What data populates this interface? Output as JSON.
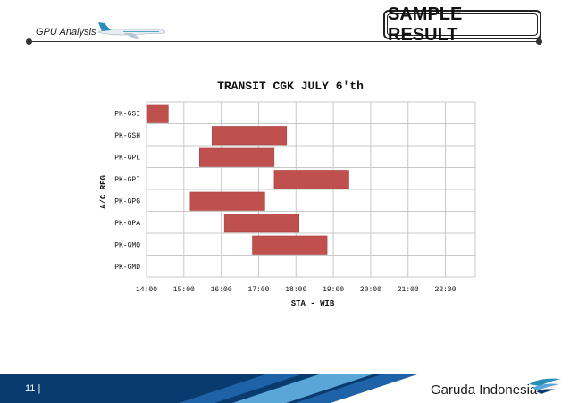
{
  "header": {
    "title": "GPU Analysis",
    "badge": "SAMPLE RESULT"
  },
  "footer": {
    "page": "11 |",
    "brand": "Garuda Indonesia"
  },
  "colors": {
    "bar": "#c0504d",
    "grid": "#c8c8c8",
    "footer_dark": "#0a3b6e",
    "footer_mid": "#1e63a8",
    "footer_light": "#5aa6d8"
  },
  "icons": {
    "header_logo": "aircraft-icon",
    "footer_logo": "garuda-bird-icon"
  },
  "chart_data": {
    "type": "gantt",
    "title": "TRANSIT CGK JULY 6'th",
    "xlabel": "STA - WIB",
    "ylabel": "A/C REG",
    "xticks": [
      "14:00",
      "15:00",
      "16:00",
      "17:00",
      "18:00",
      "19:00",
      "20:00",
      "21:00",
      "22:00"
    ],
    "xlim_hours": [
      14,
      22.8
    ],
    "grid": true,
    "categories": [
      "PK-GSI",
      "PK-GSH",
      "PK-GPL",
      "PK-GPI",
      "PK-GPG",
      "PK-GPA",
      "PK-GMQ",
      "PK-GMD"
    ],
    "bars": [
      {
        "reg": "PK-GSI",
        "start": "14:00",
        "end": "14:35"
      },
      {
        "reg": "PK-GSH",
        "start": "15:45",
        "end": "17:45"
      },
      {
        "reg": "PK-GPL",
        "start": "15:25",
        "end": "17:25"
      },
      {
        "reg": "PK-GPI",
        "start": "17:25",
        "end": "19:25"
      },
      {
        "reg": "PK-GPG",
        "start": "15:10",
        "end": "17:10"
      },
      {
        "reg": "PK-GPA",
        "start": "16:05",
        "end": "18:05"
      },
      {
        "reg": "PK-GMQ",
        "start": "16:50",
        "end": "18:50"
      },
      {
        "reg": "PK-GMD",
        "start": null,
        "end": null
      }
    ]
  }
}
